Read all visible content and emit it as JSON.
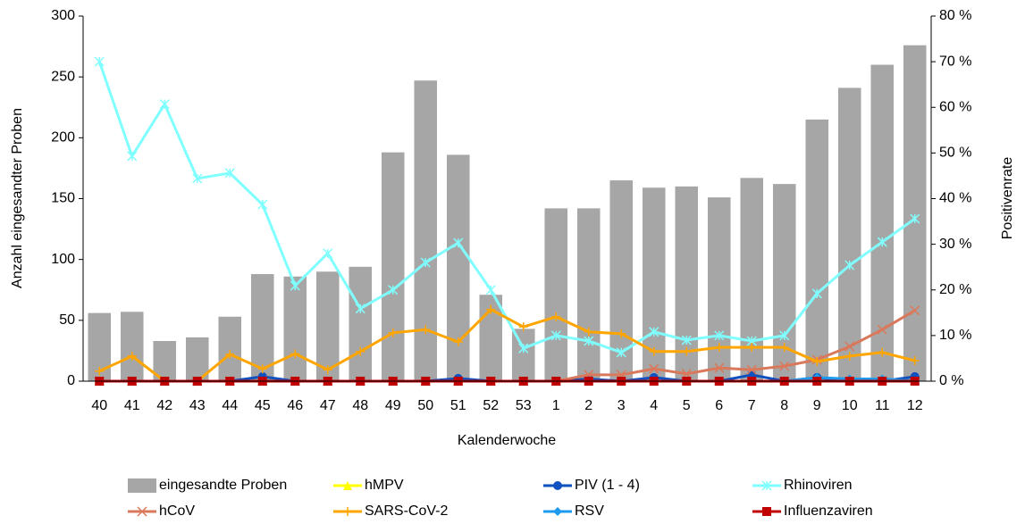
{
  "chart_data": {
    "type": "combo",
    "categories": [
      "40",
      "41",
      "42",
      "43",
      "44",
      "45",
      "46",
      "47",
      "48",
      "49",
      "50",
      "51",
      "52",
      "53",
      "1",
      "2",
      "3",
      "4",
      "5",
      "6",
      "7",
      "8",
      "9",
      "10",
      "11",
      "12"
    ],
    "x_label": "Kalenderwoche",
    "y_label": "Anzahl eingesandter Proben",
    "y2_label": "Positivenrate",
    "ylim": [
      0,
      300
    ],
    "yticks": [
      0,
      50,
      100,
      150,
      200,
      250,
      300
    ],
    "y2lim": [
      0,
      80
    ],
    "y2ticks": [
      {
        "value": 0,
        "label": "0 %"
      },
      {
        "value": 10,
        "label": "10 %"
      },
      {
        "value": 20,
        "label": "20 %"
      },
      {
        "value": 30,
        "label": "30 %"
      },
      {
        "value": 40,
        "label": "40 %"
      },
      {
        "value": 50,
        "label": "50 %"
      },
      {
        "value": 60,
        "label": "60 %"
      },
      {
        "value": 70,
        "label": "70 %"
      },
      {
        "value": 80,
        "label": "80 %"
      }
    ],
    "grid": false,
    "legend": "bottom",
    "series": [
      {
        "name": "eingesandte Proben",
        "type": "bar",
        "color": "#a6a6a6",
        "axis": "y",
        "values": [
          56,
          57,
          33,
          36,
          53,
          88,
          86,
          90,
          94,
          188,
          247,
          186,
          71,
          43,
          142,
          142,
          165,
          159,
          160,
          151,
          167,
          162,
          215,
          241,
          260,
          276
        ]
      },
      {
        "name": "hMPV",
        "type": "line",
        "marker": "triangle",
        "color": "#ffff00",
        "axis": "y2",
        "values": [
          0,
          0,
          0,
          0,
          0,
          0,
          0,
          0,
          0,
          0,
          0,
          0,
          0,
          0,
          0,
          0,
          0,
          0,
          0,
          0,
          0,
          0,
          0,
          0,
          0,
          0
        ]
      },
      {
        "name": "PIV (1 - 4)",
        "type": "line",
        "marker": "circle",
        "color": "#0f52bf",
        "axis": "y2",
        "values": [
          0,
          0,
          0,
          0,
          0,
          1,
          0,
          0,
          0,
          0,
          0,
          0.6,
          0,
          0,
          0,
          0.5,
          0,
          0.8,
          0,
          0,
          1.4,
          0,
          0.8,
          0,
          0,
          1
        ]
      },
      {
        "name": "Rhinoviren",
        "type": "line",
        "marker": "asterisk",
        "color": "#80ffff",
        "axis": "y2",
        "values": [
          70,
          49.3,
          60.7,
          44.4,
          45.6,
          38.7,
          20.9,
          28,
          15.9,
          20,
          26,
          30.3,
          20,
          7.2,
          10,
          8.8,
          6.3,
          10.8,
          9,
          10,
          8.8,
          10,
          19.2,
          25.4,
          30.5,
          35.6
        ]
      },
      {
        "name": "hCoV",
        "type": "line",
        "marker": "x",
        "color": "#d9785a",
        "axis": "y2",
        "values": [
          0,
          0,
          0,
          0,
          0,
          0,
          0,
          0,
          0,
          0,
          0,
          0,
          0,
          0,
          0,
          1.4,
          1.4,
          2.7,
          1.6,
          2.9,
          2.5,
          3.3,
          4.7,
          7.6,
          11.3,
          15.5
        ]
      },
      {
        "name": "SARS-CoV-2",
        "type": "line",
        "marker": "plus",
        "color": "#ffa500",
        "axis": "y2",
        "values": [
          2.2,
          5.5,
          0,
          0,
          5.9,
          2.7,
          6,
          2.5,
          6.5,
          10.6,
          11.3,
          8.6,
          15.7,
          11.9,
          14.1,
          10.8,
          10.4,
          6.5,
          6.5,
          7.4,
          7.4,
          7.4,
          4.3,
          5.5,
          6.3,
          4.5
        ]
      },
      {
        "name": "RSV",
        "type": "line",
        "marker": "diamond",
        "color": "#1e9bec",
        "axis": "y2",
        "values": [
          0,
          0,
          0,
          0,
          0,
          0,
          0,
          0,
          0,
          0,
          0,
          0,
          0,
          0,
          0,
          0,
          0,
          0,
          0,
          0,
          0,
          0,
          0.8,
          0.5,
          0.5,
          0
        ]
      },
      {
        "name": "Influenzaviren",
        "type": "line",
        "marker": "square",
        "color": "#c00000",
        "axis": "y2",
        "values": [
          0,
          0,
          0,
          0,
          0,
          0,
          0,
          0,
          0,
          0,
          0,
          0,
          0,
          0,
          0,
          0,
          0,
          0,
          0,
          0,
          0,
          0,
          0,
          0,
          0,
          0
        ]
      }
    ]
  }
}
